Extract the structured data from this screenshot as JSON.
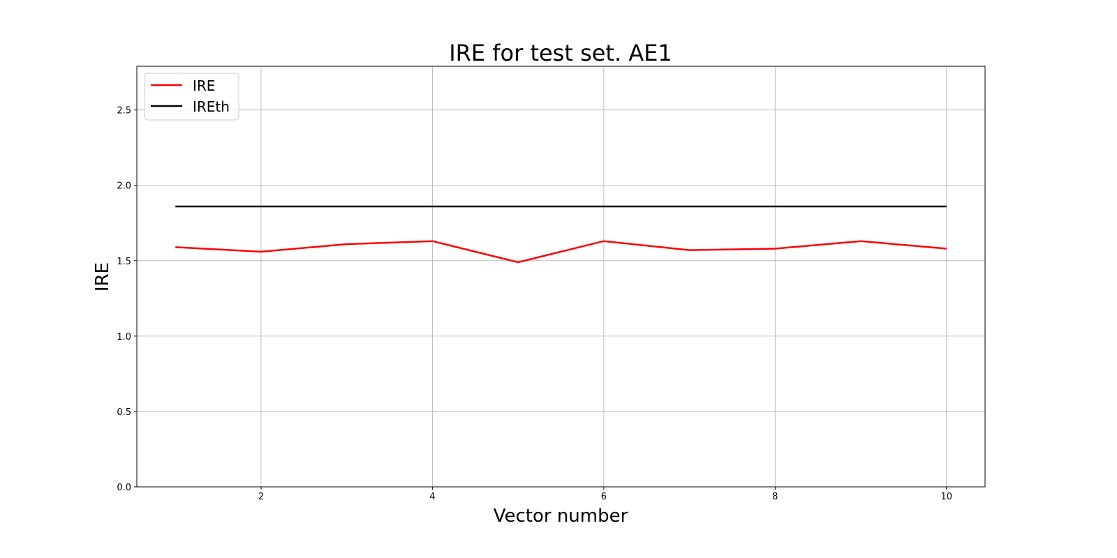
{
  "chart_data": {
    "type": "line",
    "title": "IRE for test set. AE1",
    "xlabel": "Vector number",
    "ylabel": "IRE",
    "xlim": [
      0.55,
      10.45
    ],
    "ylim": [
      0,
      2.79
    ],
    "xticks": [
      2,
      4,
      6,
      8,
      10
    ],
    "yticks": [
      0.0,
      0.5,
      1.0,
      1.5,
      2.0,
      2.5
    ],
    "ytick_labels": [
      "0.0",
      "0.5",
      "1.0",
      "1.5",
      "2.0",
      "2.5"
    ],
    "grid": true,
    "legend_position": "top-left",
    "x": [
      1,
      2,
      3,
      4,
      5,
      6,
      7,
      8,
      9,
      10
    ],
    "series": [
      {
        "name": "IRE",
        "color": "#ff0000",
        "values": [
          1.59,
          1.56,
          1.61,
          1.63,
          1.49,
          1.63,
          1.57,
          1.58,
          1.63,
          1.58
        ]
      },
      {
        "name": "IREth",
        "color": "#000000",
        "values": [
          1.86,
          1.86,
          1.86,
          1.86,
          1.86,
          1.86,
          1.86,
          1.86,
          1.86,
          1.86
        ]
      }
    ]
  }
}
